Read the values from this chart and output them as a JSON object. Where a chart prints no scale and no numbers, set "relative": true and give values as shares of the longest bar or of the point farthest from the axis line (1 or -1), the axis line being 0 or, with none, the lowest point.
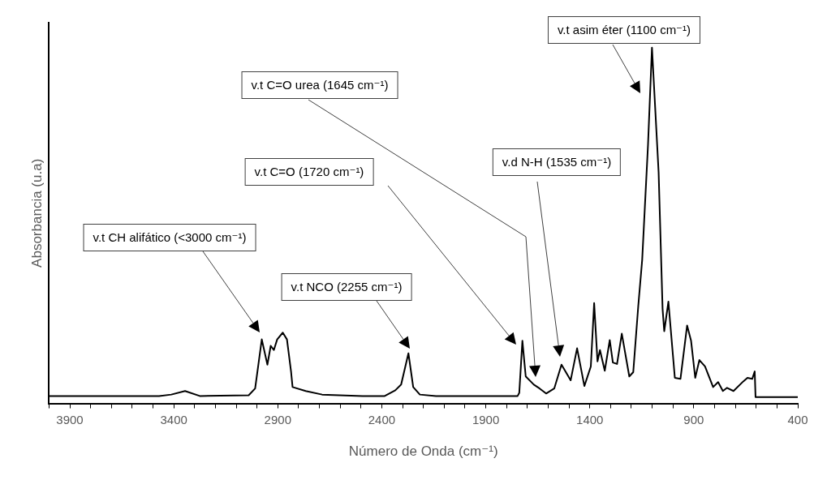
{
  "chart_data": {
    "type": "line",
    "xlabel": "Número de Onda (cm⁻¹)",
    "ylabel": "Absorbancia (u.a)",
    "relative": true,
    "marker": "none",
    "line_style": "solid",
    "color": "#000000",
    "xlim": [
      4000,
      400
    ],
    "xticks": [
      {
        "value": 4000,
        "label": null
      },
      3900,
      {
        "value": 3800,
        "label": null
      },
      {
        "value": 3700,
        "label": null
      },
      {
        "value": 3600,
        "label": null
      },
      {
        "value": 3500,
        "label": null
      },
      3400,
      {
        "value": 3300,
        "label": null
      },
      {
        "value": 3200,
        "label": null
      },
      {
        "value": 3100,
        "label": null
      },
      {
        "value": 3000,
        "label": null
      },
      2900,
      {
        "value": 2800,
        "label": null
      },
      {
        "value": 2700,
        "label": null
      },
      {
        "value": 2600,
        "label": null
      },
      {
        "value": 2500,
        "label": null
      },
      2400,
      {
        "value": 2300,
        "label": null
      },
      {
        "value": 2200,
        "label": null
      },
      {
        "value": 2100,
        "label": null
      },
      {
        "value": 2000,
        "label": null
      },
      1900,
      {
        "value": 1800,
        "label": null
      },
      {
        "value": 1700,
        "label": null
      },
      {
        "value": 1600,
        "label": null
      },
      {
        "value": 1500,
        "label": null
      },
      1400,
      {
        "value": 1300,
        "label": null
      },
      {
        "value": 1200,
        "label": null
      },
      {
        "value": 1100,
        "label": null
      },
      {
        "value": 1000,
        "label": null
      },
      900,
      {
        "value": 800,
        "label": null
      },
      {
        "value": 700,
        "label": null
      },
      {
        "value": 600,
        "label": null
      },
      {
        "value": 500,
        "label": null
      },
      400
    ],
    "x": [
      4000,
      3471,
      3412,
      3346,
      3275,
      3040,
      3009,
      2977,
      2950,
      2934,
      2919,
      2903,
      2876,
      2856,
      2836,
      2829,
      2766,
      2687,
      2492,
      2386,
      2335,
      2307,
      2272,
      2249,
      2217,
      2139,
      1747,
      1739,
      1724,
      1708,
      1669,
      1641,
      1610,
      1571,
      1536,
      1492,
      1461,
      1426,
      1395,
      1379,
      1363,
      1351,
      1328,
      1304,
      1289,
      1269,
      1246,
      1210,
      1191,
      1167,
      1148,
      1120,
      1101,
      1069,
      1050,
      1042,
      1022,
      991,
      964,
      932,
      913,
      893,
      873,
      846,
      807,
      783,
      760,
      740,
      709,
      662,
      642,
      619,
      607,
      603,
      400
    ],
    "values": [
      0.021,
      0.021,
      0.025,
      0.035,
      0.021,
      0.023,
      0.042,
      0.18,
      0.109,
      0.162,
      0.15,
      0.18,
      0.199,
      0.18,
      0.088,
      0.046,
      0.035,
      0.025,
      0.021,
      0.021,
      0.037,
      0.053,
      0.141,
      0.046,
      0.025,
      0.021,
      0.021,
      0.03,
      0.176,
      0.076,
      0.053,
      0.042,
      0.028,
      0.042,
      0.109,
      0.065,
      0.155,
      0.049,
      0.104,
      0.282,
      0.118,
      0.15,
      0.092,
      0.178,
      0.115,
      0.111,
      0.196,
      0.076,
      0.088,
      0.273,
      0.404,
      0.727,
      1,
      0.649,
      0.266,
      0.203,
      0.286,
      0.072,
      0.069,
      0.219,
      0.176,
      0.072,
      0.122,
      0.104,
      0.046,
      0.06,
      0.035,
      0.044,
      0.035,
      0.062,
      0.072,
      0.069,
      0.09,
      0.018,
      0.018
    ],
    "annotations": [
      "v.t CH alifático (<3000 cm⁻¹)",
      "v.t NCO (2255 cm⁻¹)",
      "v.t C=O (1720 cm⁻¹)",
      "v.t C=O urea (1645 cm⁻¹)",
      "v.d N-H (1535 cm⁻¹)",
      "v.t asim éter (1100 cm⁻¹)"
    ]
  }
}
